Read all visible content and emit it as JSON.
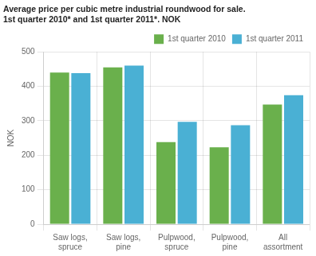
{
  "chart_data": {
    "type": "bar",
    "title": "Average price per cubic metre industrial roundwood for sale.\n1st quarter 2010* and 1st quarter 2011*. NOK",
    "ylabel": "NOK",
    "categories": [
      "Saw logs,\nspruce",
      "Saw logs,\npine",
      "Pulpwood,\nspruce",
      "Pulpwood,\npine",
      "All\nassortment"
    ],
    "series": [
      {
        "name": "1st quarter 2010",
        "color": "#6ab04c",
        "values": [
          440,
          455,
          238,
          223,
          347
        ]
      },
      {
        "name": "1st quarter 2011",
        "color": "#4ab0d4",
        "values": [
          438,
          460,
          297,
          287,
          374
        ]
      }
    ],
    "ylim": [
      0,
      500
    ],
    "yticks": [
      0,
      100,
      200,
      300,
      400,
      500
    ],
    "grid": true,
    "legend": "upper right"
  }
}
